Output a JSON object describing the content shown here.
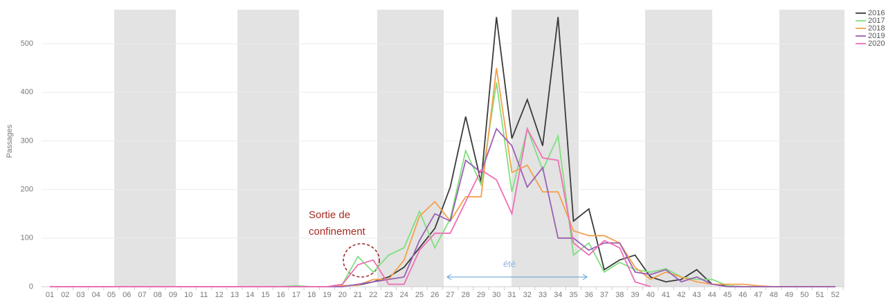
{
  "chart_data": {
    "type": "line",
    "y_label": "Passages",
    "categories": [
      "01",
      "02",
      "03",
      "04",
      "05",
      "06",
      "07",
      "08",
      "09",
      "10",
      "11",
      "12",
      "13",
      "14",
      "15",
      "16",
      "17",
      "18",
      "19",
      "20",
      "21",
      "22",
      "23",
      "24",
      "25",
      "26",
      "27",
      "28",
      "29",
      "30",
      "31",
      "32",
      "33",
      "34",
      "35",
      "36",
      "37",
      "38",
      "39",
      "40",
      "41",
      "42",
      "43",
      "44",
      "45",
      "46",
      "47",
      "48",
      "49",
      "50",
      "51",
      "52"
    ],
    "series": [
      {
        "name": "2016",
        "color": "#3a3a3a",
        "values": [
          0,
          0,
          0,
          0,
          0,
          0,
          0,
          0,
          0,
          0,
          0,
          0,
          0,
          0,
          0,
          0,
          0,
          0,
          0,
          2,
          3,
          10,
          20,
          40,
          80,
          120,
          205,
          350,
          215,
          555,
          305,
          385,
          290,
          555,
          135,
          160,
          35,
          55,
          65,
          20,
          10,
          15,
          35,
          5,
          2,
          0,
          0,
          0,
          0,
          0,
          0,
          0
        ]
      },
      {
        "name": "2017",
        "color": "#7ee07e",
        "values": [
          0,
          0,
          0,
          0,
          0,
          0,
          0,
          0,
          0,
          0,
          0,
          0,
          0,
          0,
          0,
          0,
          2,
          0,
          0,
          5,
          62,
          30,
          65,
          80,
          155,
          80,
          140,
          280,
          210,
          420,
          195,
          325,
          240,
          310,
          65,
          90,
          30,
          50,
          35,
          30,
          37,
          20,
          15,
          15,
          2,
          0,
          0,
          0,
          0,
          0,
          0,
          0
        ]
      },
      {
        "name": "2018",
        "color": "#f5a04a",
        "values": [
          0,
          0,
          0,
          0,
          0,
          0,
          0,
          0,
          0,
          0,
          0,
          0,
          0,
          0,
          0,
          0,
          0,
          0,
          0,
          2,
          3,
          15,
          15,
          55,
          145,
          175,
          135,
          185,
          185,
          450,
          235,
          250,
          195,
          195,
          115,
          105,
          105,
          90,
          40,
          15,
          30,
          20,
          10,
          5,
          5,
          5,
          2,
          0,
          0,
          0,
          0,
          0
        ]
      },
      {
        "name": "2019",
        "color": "#9b5fb5",
        "values": [
          0,
          0,
          0,
          0,
          0,
          0,
          0,
          0,
          0,
          0,
          0,
          0,
          0,
          0,
          0,
          0,
          0,
          0,
          0,
          0,
          5,
          10,
          15,
          20,
          95,
          150,
          135,
          260,
          235,
          325,
          290,
          205,
          245,
          100,
          100,
          75,
          90,
          90,
          30,
          25,
          35,
          10,
          20,
          5,
          0,
          0,
          0,
          0,
          0,
          0,
          0,
          0
        ]
      },
      {
        "name": "2020",
        "color": "#ee6fb5",
        "values": [
          0,
          0,
          0,
          0,
          0,
          0,
          0,
          0,
          0,
          0,
          0,
          0,
          0,
          0,
          0,
          0,
          0,
          0,
          0,
          5,
          45,
          55,
          5,
          5,
          75,
          110,
          110,
          175,
          240,
          220,
          150,
          325,
          265,
          260,
          90,
          65,
          95,
          80,
          10,
          0,
          null,
          null,
          null,
          null,
          null,
          null,
          null,
          null,
          null,
          null,
          null,
          null
        ]
      }
    ],
    "ylim": [
      0,
      570
    ],
    "yticks": [
      0,
      100,
      200,
      300,
      400,
      500
    ],
    "grid": true,
    "legend": "top-right",
    "annotations": [
      "Sortie de",
      "confinement",
      "été"
    ]
  }
}
